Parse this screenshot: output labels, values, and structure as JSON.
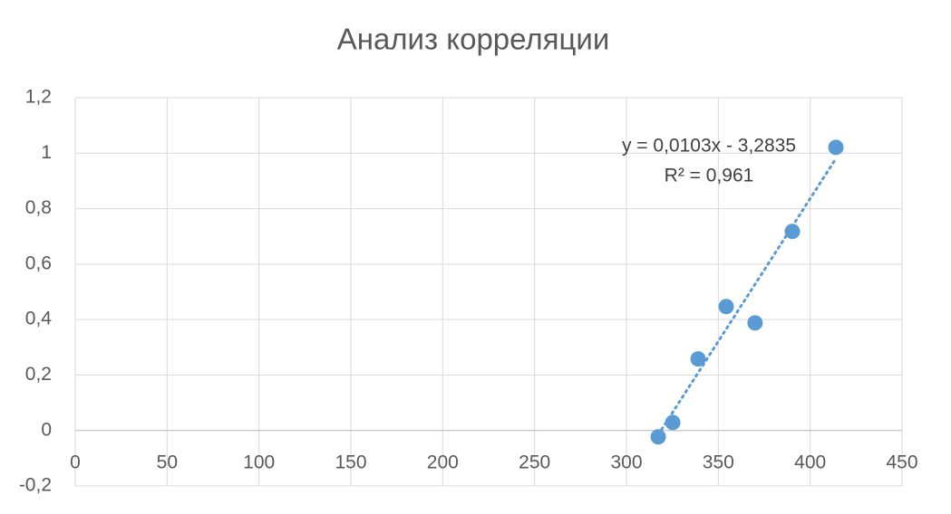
{
  "chart_data": {
    "type": "scatter",
    "title": "Анализ корреляции",
    "series": [
      {
        "color": "#5b9bd5",
        "x": [
          317.3,
          325.2,
          339,
          354.3,
          370,
          390.3,
          414
        ],
        "values": [
          -0.023,
          0.029,
          0.258,
          0.447,
          0.388,
          0.718,
          1.021
        ]
      }
    ],
    "trendline": {
      "slope": 0.0103,
      "intercept": -3.2835,
      "label": "y = 0,0103x - 3,2835",
      "r2_label": "R² = 0,961"
    },
    "xlim": [
      0,
      450
    ],
    "xticks": [
      0,
      50,
      100,
      150,
      200,
      250,
      300,
      350,
      400,
      450
    ],
    "ylim": [
      -0.2,
      1.2
    ],
    "yticks": [
      {
        "value": -0.2,
        "label": "-0,2"
      },
      0,
      {
        "value": 0.2,
        "label": "0,2"
      },
      {
        "value": 0.4,
        "label": "0,4"
      },
      {
        "value": 0.6,
        "label": "0,6"
      },
      {
        "value": 0.8,
        "label": "0,8"
      },
      1,
      {
        "value": 1.2,
        "label": "1,2"
      }
    ],
    "grid": true
  }
}
